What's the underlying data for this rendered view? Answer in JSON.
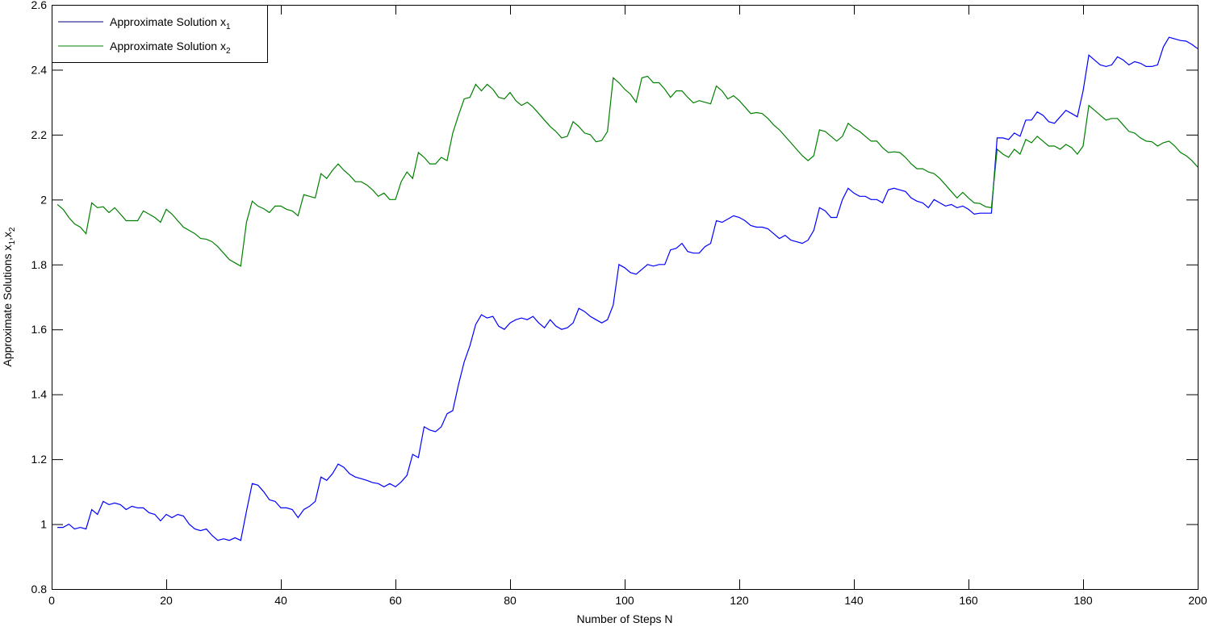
{
  "chart_data": {
    "type": "line",
    "title": "",
    "xlabel": "Number of Steps N",
    "ylabel": "Approximate Solutions x1,x2",
    "ylabel_parts": {
      "base": "Approximate Solutions x",
      "sub1": "1",
      "sep": ",x",
      "sub2": "2"
    },
    "xlim": [
      0,
      200
    ],
    "ylim": [
      0.8,
      2.6
    ],
    "xticks": [
      0,
      20,
      40,
      60,
      80,
      100,
      120,
      140,
      160,
      180,
      200
    ],
    "yticks": [
      0.8,
      1,
      1.2,
      1.4,
      1.6,
      1.8,
      2,
      2.2,
      2.4,
      2.6
    ],
    "ytick_labels": [
      "0.8",
      "1",
      "1.2",
      "1.4",
      "1.6",
      "1.8",
      "2",
      "2.2",
      "2.4",
      "2.6"
    ],
    "grid": false,
    "legend_position": "top-left",
    "series": [
      {
        "name": "Approximate Solution x1",
        "legend_base": "Approximate Solution x",
        "legend_sub": "1",
        "color": "#0000ff",
        "legend_color": "#000080",
        "values": [
          0.99,
          0.99,
          1.0,
          0.985,
          0.99,
          0.985,
          1.045,
          1.03,
          1.07,
          1.06,
          1.065,
          1.06,
          1.045,
          1.055,
          1.05,
          1.05,
          1.035,
          1.03,
          1.01,
          1.03,
          1.02,
          1.03,
          1.025,
          1.0,
          0.985,
          0.98,
          0.985,
          0.965,
          0.95,
          0.955,
          0.95,
          0.958,
          0.95,
          1.04,
          1.125,
          1.12,
          1.1,
          1.075,
          1.07,
          1.05,
          1.05,
          1.045,
          1.02,
          1.045,
          1.055,
          1.07,
          1.145,
          1.135,
          1.155,
          1.185,
          1.175,
          1.155,
          1.145,
          1.14,
          1.135,
          1.128,
          1.125,
          1.115,
          1.125,
          1.115,
          1.13,
          1.15,
          1.215,
          1.205,
          1.3,
          1.29,
          1.285,
          1.3,
          1.34,
          1.35,
          1.43,
          1.5,
          1.55,
          1.615,
          1.645,
          1.635,
          1.64,
          1.61,
          1.6,
          1.62,
          1.63,
          1.635,
          1.63,
          1.64,
          1.62,
          1.605,
          1.63,
          1.61,
          1.6,
          1.605,
          1.62,
          1.665,
          1.655,
          1.64,
          1.63,
          1.62,
          1.63,
          1.675,
          1.8,
          1.79,
          1.775,
          1.77,
          1.785,
          1.8,
          1.795,
          1.8,
          1.8,
          1.845,
          1.85,
          1.865,
          1.84,
          1.835,
          1.835,
          1.855,
          1.865,
          1.935,
          1.93,
          1.94,
          1.95,
          1.945,
          1.935,
          1.92,
          1.915,
          1.915,
          1.91,
          1.895,
          1.88,
          1.89,
          1.875,
          1.87,
          1.865,
          1.875,
          1.905,
          1.975,
          1.965,
          1.945,
          1.945,
          2.0,
          2.035,
          2.02,
          2.01,
          2.01,
          2.0,
          2.0,
          1.99,
          2.03,
          2.035,
          2.03,
          2.025,
          2.005,
          1.995,
          1.99,
          1.975,
          2.0,
          1.99,
          1.98,
          1.985,
          1.975,
          1.98,
          1.97,
          1.955,
          1.958,
          1.958,
          1.958,
          2.19,
          2.19,
          2.185,
          2.205,
          2.195,
          2.245,
          2.245,
          2.27,
          2.26,
          2.24,
          2.235,
          2.255,
          2.275,
          2.265,
          2.255,
          2.335,
          2.445,
          2.43,
          2.415,
          2.41,
          2.415,
          2.44,
          2.43,
          2.415,
          2.425,
          2.42,
          2.41,
          2.41,
          2.415,
          2.47,
          2.5,
          2.495,
          2.49,
          2.488,
          2.478,
          2.465
        ]
      },
      {
        "name": "Approximate Solution x2",
        "legend_base": "Approximate Solution x",
        "legend_sub": "2",
        "color": "#008000",
        "legend_color": "#008000",
        "values": [
          1.985,
          1.97,
          1.945,
          1.925,
          1.915,
          1.895,
          1.99,
          1.975,
          1.978,
          1.96,
          1.975,
          1.955,
          1.935,
          1.935,
          1.935,
          1.965,
          1.955,
          1.945,
          1.93,
          1.97,
          1.955,
          1.935,
          1.915,
          1.905,
          1.895,
          1.88,
          1.878,
          1.87,
          1.855,
          1.835,
          1.815,
          1.805,
          1.795,
          1.93,
          1.995,
          1.98,
          1.972,
          1.96,
          1.98,
          1.98,
          1.97,
          1.965,
          1.95,
          2.015,
          2.01,
          2.005,
          2.08,
          2.065,
          2.09,
          2.11,
          2.09,
          2.075,
          2.055,
          2.055,
          2.045,
          2.03,
          2.01,
          2.02,
          2.0,
          2.0,
          2.055,
          2.085,
          2.065,
          2.145,
          2.13,
          2.11,
          2.11,
          2.13,
          2.12,
          2.205,
          2.26,
          2.31,
          2.315,
          2.355,
          2.335,
          2.355,
          2.34,
          2.315,
          2.31,
          2.33,
          2.305,
          2.29,
          2.3,
          2.285,
          2.265,
          2.245,
          2.225,
          2.21,
          2.19,
          2.195,
          2.24,
          2.225,
          2.205,
          2.2,
          2.178,
          2.182,
          2.21,
          2.375,
          2.36,
          2.34,
          2.325,
          2.3,
          2.375,
          2.38,
          2.36,
          2.36,
          2.34,
          2.315,
          2.335,
          2.335,
          2.315,
          2.298,
          2.305,
          2.3,
          2.295,
          2.35,
          2.335,
          2.31,
          2.32,
          2.305,
          2.285,
          2.265,
          2.268,
          2.265,
          2.25,
          2.23,
          2.215,
          2.195,
          2.175,
          2.155,
          2.135,
          2.12,
          2.135,
          2.215,
          2.21,
          2.195,
          2.18,
          2.195,
          2.235,
          2.22,
          2.21,
          2.195,
          2.18,
          2.18,
          2.16,
          2.145,
          2.147,
          2.145,
          2.13,
          2.11,
          2.095,
          2.095,
          2.085,
          2.08,
          2.065,
          2.045,
          2.025,
          2.005,
          2.022,
          2.005,
          1.99,
          1.988,
          1.978,
          1.975,
          2.155,
          2.14,
          2.13,
          2.155,
          2.14,
          2.185,
          2.175,
          2.195,
          2.18,
          2.165,
          2.165,
          2.155,
          2.17,
          2.16,
          2.14,
          2.165,
          2.29,
          2.275,
          2.26,
          2.245,
          2.25,
          2.25,
          2.23,
          2.21,
          2.205,
          2.19,
          2.18,
          2.178,
          2.165,
          2.175,
          2.18,
          2.165,
          2.145,
          2.135,
          2.12,
          2.1
        ]
      }
    ]
  }
}
